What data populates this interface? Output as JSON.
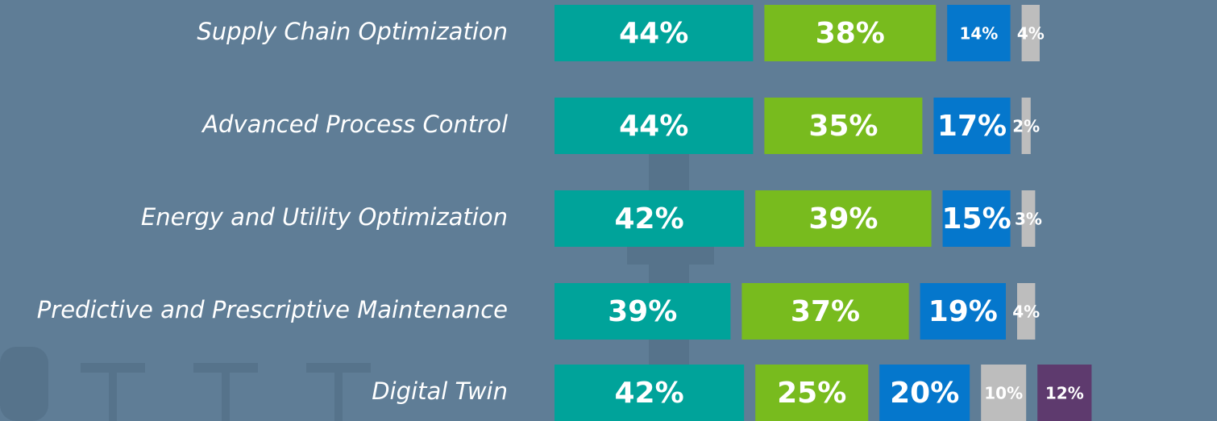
{
  "chart_data": {
    "type": "stacked-bar-horizontal",
    "categories": [
      "Supply Chain Optimization",
      "Advanced Process Control",
      "Energy and Utility Optimization",
      "Predictive and Prescriptive Maintenance",
      "Digital Twin"
    ],
    "series": [
      {
        "color": "#00a39a",
        "values": [
          44,
          44,
          42,
          39,
          42
        ],
        "value_labels": [
          "44%",
          "44%",
          "42%",
          "39%",
          "42%"
        ]
      },
      {
        "color": "#78bb1e",
        "values": [
          38,
          35,
          39,
          37,
          25
        ],
        "value_labels": [
          "38%",
          "35%",
          "39%",
          "37%",
          "25%"
        ]
      },
      {
        "color": "#0577cc",
        "values": [
          14,
          17,
          15,
          19,
          20
        ],
        "value_labels": [
          "14%",
          "17%",
          "15%",
          "19%",
          "20%"
        ]
      },
      {
        "color": "#bdbdbd",
        "values": [
          4,
          2,
          3,
          4,
          10
        ],
        "value_labels": [
          "4%",
          "2%",
          "3%",
          "4%",
          "10%"
        ]
      },
      {
        "color": "#5e3a6e",
        "values": [
          null,
          null,
          null,
          null,
          12
        ],
        "value_labels": [
          null,
          null,
          null,
          null,
          "12%"
        ]
      }
    ]
  }
}
